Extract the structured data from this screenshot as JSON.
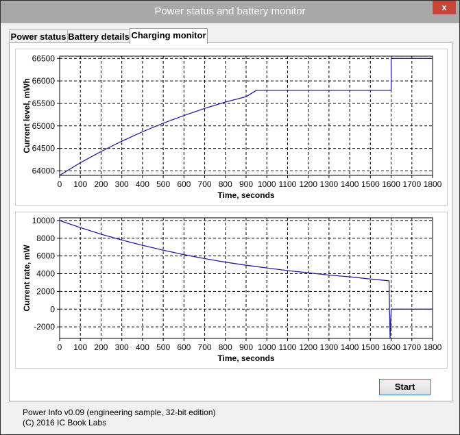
{
  "window": {
    "title": "Power status and battery monitor",
    "close_label": "x"
  },
  "tabs": [
    {
      "label": "Power status",
      "active": false
    },
    {
      "label": "Battery details",
      "active": false
    },
    {
      "label": "Charging monitor",
      "active": true
    }
  ],
  "start_button": {
    "label": "Start"
  },
  "status": {
    "line1": "Power Info v0.09 (engineering sample, 32-bit edition)",
    "line2": "(C) 2016  IC Book Labs"
  },
  "colors": {
    "line": "#1f1fa0",
    "grid": "#000000"
  },
  "chart_data": [
    {
      "type": "line",
      "xlabel": "Time, seconds",
      "ylabel": "Current level,  mWh",
      "xlim": [
        0,
        1800
      ],
      "ylim": [
        63900,
        66550
      ],
      "xticks": [
        0,
        100,
        200,
        300,
        400,
        500,
        600,
        700,
        800,
        900,
        1000,
        1100,
        1200,
        1300,
        1400,
        1500,
        1600,
        1700,
        1800
      ],
      "yticks": [
        64000,
        64500,
        65000,
        65500,
        66000,
        66500
      ],
      "grid": true,
      "series": [
        {
          "x": [
            0,
            100,
            200,
            300,
            400,
            500,
            600,
            700,
            800,
            900,
            950,
            1000,
            1100,
            1200,
            1300,
            1400,
            1500,
            1590,
            1590,
            1600,
            1600,
            1700,
            1800
          ],
          "y": [
            63900,
            64180,
            64430,
            64660,
            64870,
            65060,
            65230,
            65390,
            65530,
            65650,
            65790,
            65790,
            65790,
            65790,
            65790,
            65790,
            65790,
            65790,
            65790,
            65790,
            66500,
            66500,
            66500
          ]
        }
      ]
    },
    {
      "type": "line",
      "xlabel": "Time,  seconds",
      "ylabel": "Current rate,  mW",
      "xlim": [
        0,
        1800
      ],
      "ylim": [
        -3300,
        10300
      ],
      "xticks": [
        0,
        100,
        200,
        300,
        400,
        500,
        600,
        700,
        800,
        900,
        1000,
        1100,
        1200,
        1300,
        1400,
        1500,
        1600,
        1700,
        1800
      ],
      "yticks": [
        -2000,
        0,
        2000,
        4000,
        6000,
        8000,
        10000
      ],
      "grid": true,
      "series": [
        {
          "x": [
            0,
            100,
            200,
            300,
            400,
            500,
            600,
            700,
            800,
            900,
            1000,
            1100,
            1200,
            1300,
            1400,
            1500,
            1590,
            1595,
            1600,
            1700,
            1800
          ],
          "y": [
            10000,
            9200,
            8450,
            7800,
            7200,
            6650,
            6150,
            5700,
            5300,
            4950,
            4650,
            4350,
            4100,
            3850,
            3650,
            3400,
            3200,
            -3300,
            0,
            0,
            0
          ]
        }
      ]
    }
  ]
}
